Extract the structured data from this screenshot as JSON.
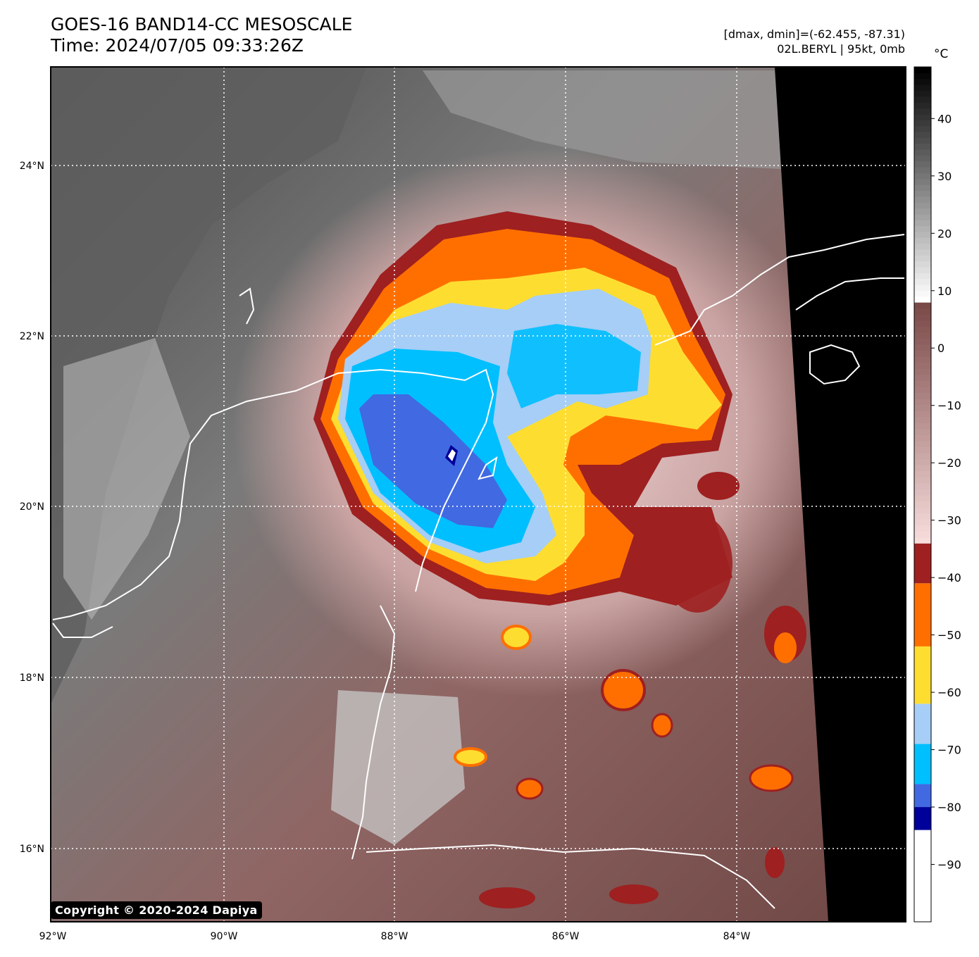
{
  "header": {
    "title_line1": "GOES-16 BAND14-CC MESOSCALE",
    "title_line2": "Time: 2024/07/05 09:33:26Z",
    "info_line1": "[dmax, dmin]=(-62.455, -87.31)",
    "info_line2": "02L.BERYL | 95kt, 0mb"
  },
  "map": {
    "lon_labels": [
      "92°W",
      "90°W",
      "88°W",
      "86°W",
      "84°W"
    ],
    "lat_labels": [
      "24°N",
      "22°N",
      "20°N",
      "18°N",
      "16°N"
    ],
    "lon_range": [
      -92,
      -82
    ],
    "lat_range": [
      15.2,
      25.2
    ],
    "storm_center": {
      "lon": -87.0,
      "lat": 20.9
    },
    "copyright": "Copyright © 2020-2024 Dapiya"
  },
  "colorbar": {
    "unit": "°C",
    "tick_labels": [
      "40",
      "30",
      "20",
      "10",
      "0",
      "−10",
      "−20",
      "−30",
      "−40",
      "−50",
      "−60",
      "−70",
      "−80",
      "−90"
    ],
    "tick_values": [
      40,
      30,
      20,
      10,
      0,
      -10,
      -20,
      -30,
      -40,
      -50,
      -60,
      -70,
      -80,
      -90
    ],
    "range": [
      -100,
      49
    ],
    "segments": [
      {
        "from": -100,
        "to": -84,
        "color": "#ffffff"
      },
      {
        "from": -84,
        "to": -80,
        "color": "#00009a"
      },
      {
        "from": -80,
        "to": -76,
        "color": "#4169e1"
      },
      {
        "from": -76,
        "to": -69,
        "color": "#00bfff"
      },
      {
        "from": -69,
        "to": -62,
        "color": "#a6cef6"
      },
      {
        "from": -62,
        "to": -52,
        "color": "#fedd31"
      },
      {
        "from": -52,
        "to": -41,
        "color": "#ff6f00"
      },
      {
        "from": -41,
        "to": -34,
        "color": "#9e2020"
      }
    ],
    "gradient_warm_low": {
      "from": -34,
      "to": 8,
      "start": "#f7dcdc",
      "end": "#7a4a48"
    },
    "gradient_gray": {
      "from": 8,
      "to": 49,
      "start": "#ffffff",
      "end": "#000000"
    }
  }
}
